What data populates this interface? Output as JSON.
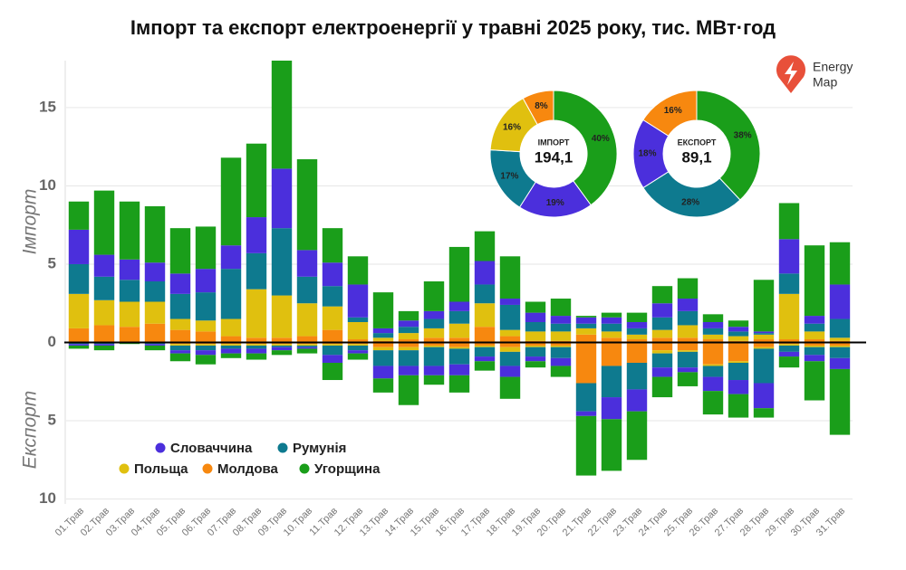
{
  "title": "Імпорт та експорт електроенергії у травні 2025 року, тис. МВт·год",
  "logo": [
    "Energy",
    "Map"
  ],
  "chart_data": [
    {
      "type": "bar",
      "ylabel_top": "Імпорт",
      "ylabel_bottom": "Експорт",
      "categories": [
        "01.Трав",
        "02.Трав",
        "03.Трав",
        "04.Трав",
        "05.Трав",
        "06.Трав",
        "07.Трав",
        "08.Трав",
        "09.Трав",
        "10.Трав",
        "11.Трав",
        "12.Трав",
        "13.Трав",
        "14.Трав",
        "15.Трав",
        "16.Трав",
        "17.Трав",
        "18.Трав",
        "19.Трав",
        "20.Трав",
        "21.Трав",
        "22.Трав",
        "23.Трав",
        "24.Трав",
        "25.Трав",
        "26.Трав",
        "27.Трав",
        "28.Трав",
        "29.Трав",
        "30.Трав",
        "31.Трав"
      ],
      "ylim": [
        -10.2,
        18
      ],
      "yticks": [
        {
          "value": -10,
          "label": "10"
        },
        {
          "value": -5,
          "label": "5"
        },
        0,
        5,
        10,
        15
      ],
      "grid": true,
      "series": [
        {
          "name": "Молдова",
          "color": "#f7880f",
          "values": [
            0.9,
            1.1,
            1.0,
            1.2,
            0.8,
            0.7,
            0.4,
            0.3,
            0.3,
            0.4,
            0.8,
            0.2,
            0.1,
            0.2,
            0.3,
            0.3,
            1.0,
            0.4,
            0.1,
            0.1,
            0.5,
            0.3,
            0.2,
            0.3,
            0.3,
            0.2,
            0.1,
            0.2,
            0.2,
            0.2,
            0.1
          ],
          "export_values": [
            0,
            0,
            0,
            0,
            -0.1,
            -0.1,
            -0.1,
            -0.1,
            -0.1,
            -0.1,
            -0.1,
            -0.1,
            -0.3,
            -0.3,
            -0.2,
            -0.3,
            -0.2,
            -0.3,
            -0.2,
            -0.2,
            -2.6,
            -1.5,
            -1.3,
            -0.5,
            -0.5,
            -1.4,
            -1.2,
            -0.3,
            -0.1,
            -0.2,
            -0.2
          ]
        },
        {
          "name": "Польща",
          "color": "#e0c00f",
          "values": [
            2.2,
            1.6,
            1.6,
            1.4,
            0.7,
            0.7,
            1.1,
            3.1,
            2.7,
            2.1,
            1.5,
            1.1,
            0.2,
            0.4,
            0.6,
            0.9,
            1.5,
            0.4,
            0.6,
            0.6,
            0.4,
            0.4,
            0.3,
            0.5,
            0.8,
            0.3,
            0.3,
            0.3,
            2.9,
            0.5,
            0.2
          ],
          "export_values": [
            0,
            0,
            0,
            0,
            -0.1,
            -0.1,
            -0.1,
            -0.1,
            -0.1,
            -0.1,
            -0.1,
            -0.1,
            -0.2,
            -0.2,
            -0.1,
            -0.1,
            -0.1,
            -0.3,
            -0.1,
            -0.1,
            0,
            0,
            0,
            -0.2,
            -0.1,
            -0.1,
            -0.1,
            -0.1,
            -0.1,
            -0.1,
            -0.1
          ]
        },
        {
          "name": "Румунія",
          "color": "#0e7a8f",
          "values": [
            1.9,
            1.5,
            1.4,
            1.3,
            1.6,
            1.8,
            3.2,
            2.3,
            4.3,
            1.7,
            1.3,
            0.3,
            0.3,
            0.4,
            0.6,
            0.8,
            1.2,
            1.6,
            0.6,
            0.5,
            0.3,
            0.5,
            0.4,
            0.8,
            0.9,
            0.4,
            0.3,
            0.1,
            1.3,
            0.5,
            1.2
          ],
          "export_values": [
            -0.1,
            -0.1,
            0,
            -0.1,
            -0.3,
            -0.3,
            -0.2,
            -0.2,
            -0.1,
            -0.1,
            -0.6,
            -0.3,
            -1.0,
            -1.0,
            -1.2,
            -1.0,
            -0.6,
            -0.9,
            -0.6,
            -0.7,
            -1.8,
            -2.0,
            -1.7,
            -0.9,
            -1.0,
            -0.7,
            -1.1,
            -2.2,
            -0.4,
            -0.5,
            -0.7
          ]
        },
        {
          "name": "Словаччина",
          "color": "#4b2fdc",
          "values": [
            2.2,
            1.4,
            1.3,
            1.2,
            1.3,
            1.5,
            1.5,
            2.3,
            3.8,
            1.7,
            1.5,
            2.1,
            0.3,
            0.4,
            0.5,
            0.6,
            1.5,
            0.4,
            0.6,
            0.5,
            0.4,
            0.4,
            0.4,
            0.9,
            0.8,
            0.4,
            0.3,
            0.1,
            2.2,
            0.5,
            2.2
          ],
          "export_values": [
            -0.1,
            -0.1,
            0,
            -0.1,
            -0.2,
            -0.3,
            -0.3,
            -0.3,
            -0.2,
            -0.1,
            -0.5,
            -0.2,
            -0.8,
            -0.6,
            -0.6,
            -0.7,
            -0.3,
            -0.7,
            -0.3,
            -0.5,
            -0.3,
            -1.4,
            -1.4,
            -0.6,
            -0.3,
            -0.9,
            -0.9,
            -1.6,
            -0.3,
            -0.4,
            -0.7
          ]
        },
        {
          "name": "Угорщина",
          "color": "#1a9e1a",
          "values": [
            1.8,
            4.1,
            3.7,
            3.6,
            2.9,
            2.7,
            5.6,
            4.7,
            6.9,
            5.8,
            2.2,
            1.8,
            2.3,
            0.6,
            1.9,
            3.5,
            1.9,
            2.7,
            0.7,
            1.1,
            0.1,
            0.3,
            0.6,
            1.1,
            1.3,
            0.5,
            0.4,
            3.3,
            2.3,
            4.5,
            2.7
          ],
          "export_values": [
            -0.2,
            -0.3,
            -0.1,
            -0.3,
            -0.5,
            -0.6,
            -0.3,
            -0.4,
            -0.3,
            -0.3,
            -1.1,
            -0.4,
            -0.9,
            -1.9,
            -0.6,
            -1.1,
            -0.6,
            -1.4,
            -0.4,
            -0.7,
            -3.8,
            -3.3,
            -3.1,
            -1.3,
            -0.9,
            -1.5,
            -1.5,
            -0.6,
            -0.7,
            -2.5,
            -4.2
          ]
        }
      ]
    },
    {
      "type": "pie",
      "label": "ІМПОРТ",
      "total": {
        "value": 194.1,
        "label": "194,1"
      },
      "values": [
        40,
        19,
        17,
        16,
        8
      ],
      "value_labels": [
        "40%",
        "19%",
        "17%",
        "16%",
        "8%"
      ],
      "colors": [
        "#1a9e1a",
        "#4b2fdc",
        "#0e7a8f",
        "#e0c00f",
        "#f7880f"
      ]
    },
    {
      "type": "pie",
      "label": "ЕКСПОРТ",
      "total": {
        "value": 89.1,
        "label": "89,1"
      },
      "values": [
        38,
        28,
        18,
        16
      ],
      "value_labels": [
        "38%",
        "28%",
        "18%",
        "16%"
      ],
      "colors": [
        "#1a9e1a",
        "#0e7a8f",
        "#4b2fdc",
        "#f7880f"
      ]
    }
  ]
}
